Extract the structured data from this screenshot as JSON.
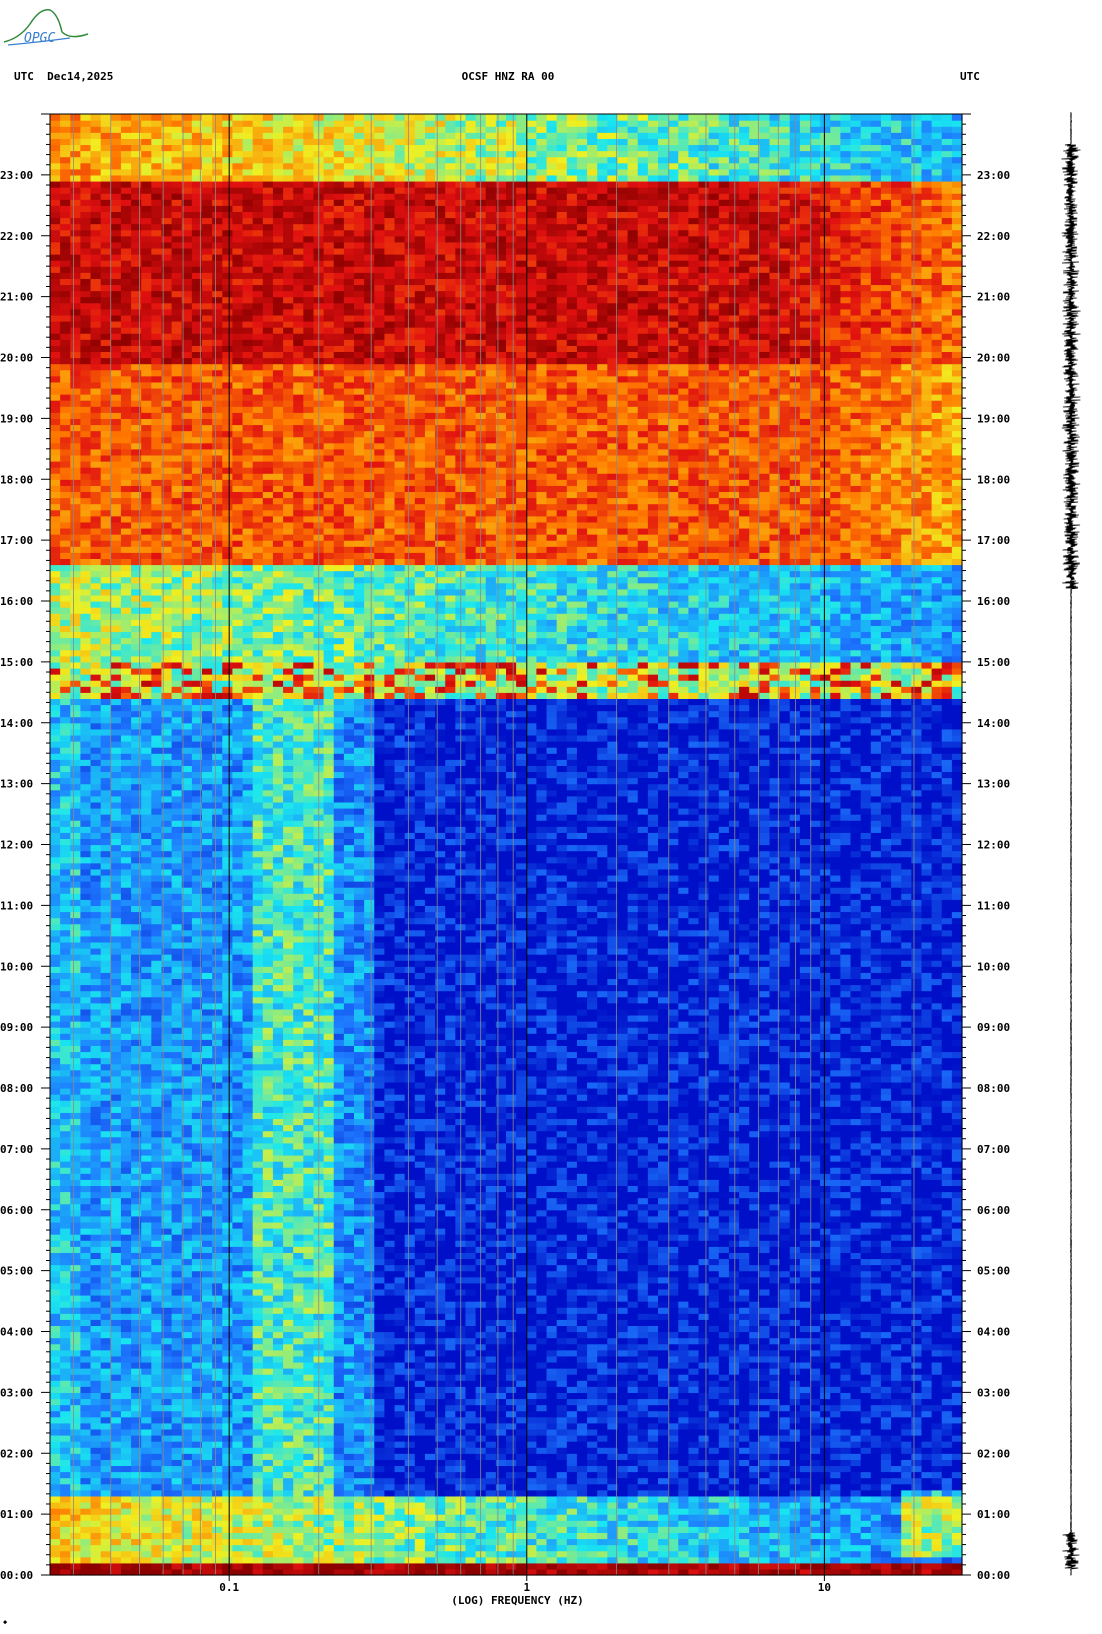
{
  "logo": {
    "text": "OPGC",
    "color": "#2f8a3a"
  },
  "header": {
    "left": "UTC  Dec14,2025",
    "center": "OCSF HNZ RA 00",
    "right": "UTC"
  },
  "chart_data": {
    "type": "heatmap",
    "title": "OCSF HNZ RA 00",
    "xlabel": "(LOG) FREQUENCY (HZ)",
    "ylabel": "UTC",
    "x_scale": "log",
    "x_range_hz": [
      0.025,
      29
    ],
    "x_ticks": [
      {
        "value": 0.1,
        "label": "0.1"
      },
      {
        "value": 1,
        "label": "1"
      },
      {
        "value": 10,
        "label": "10"
      }
    ],
    "y_range_utc": [
      "00:00",
      "24:00"
    ],
    "y_ticks": [
      "00:00",
      "01:00",
      "02:00",
      "03:00",
      "04:00",
      "05:00",
      "06:00",
      "07:00",
      "08:00",
      "09:00",
      "10:00",
      "11:00",
      "12:00",
      "13:00",
      "14:00",
      "15:00",
      "16:00",
      "17:00",
      "18:00",
      "19:00",
      "20:00",
      "21:00",
      "22:00",
      "23:00"
    ],
    "colormap": [
      "#0010c8",
      "#1e78ff",
      "#19e6f0",
      "#f0f020",
      "#ff7a00",
      "#e01010",
      "#8c0000"
    ],
    "activity_bands": [
      {
        "from": "00:00",
        "to": "00:15",
        "level": "very high"
      },
      {
        "from": "00:15",
        "to": "01:20",
        "level": "moderate"
      },
      {
        "from": "14:25",
        "to": "15:00",
        "level": "high lines"
      },
      {
        "from": "15:00",
        "to": "16:35",
        "level": "moderate"
      },
      {
        "from": "16:35",
        "to": "19:50",
        "level": "high"
      },
      {
        "from": "19:50",
        "to": "22:50",
        "level": "very high"
      },
      {
        "from": "22:50",
        "to": "24:00",
        "level": "moderate"
      }
    ],
    "trace": {
      "label": "waveform",
      "active_hours": [
        [
          0.1,
          0.7
        ],
        [
          16.2,
          23.5
        ]
      ]
    }
  }
}
